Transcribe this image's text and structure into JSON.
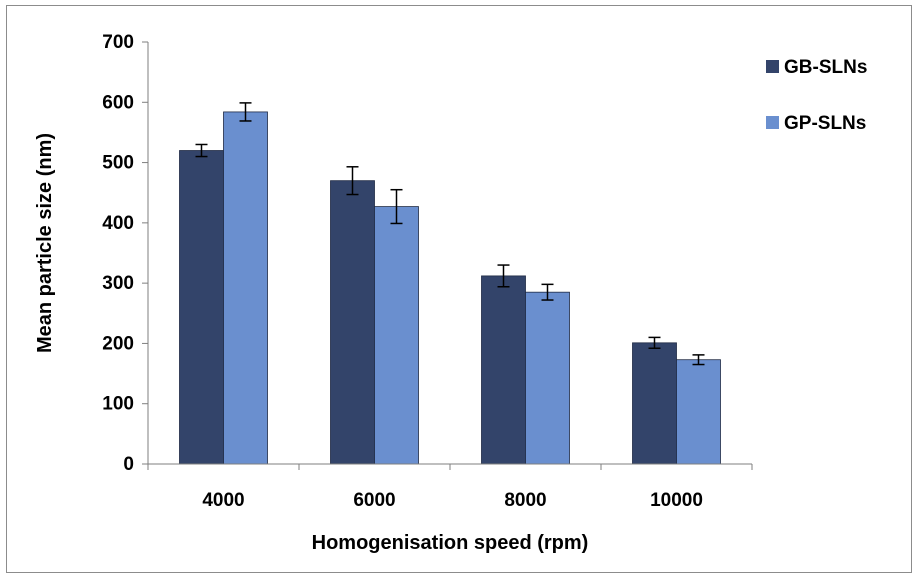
{
  "chart_data": {
    "type": "bar",
    "xlabel": "Homogenisation speed (rpm)",
    "ylabel": "Mean particle size (nm)",
    "categories": [
      "4000",
      "6000",
      "8000",
      "10000"
    ],
    "ylim": [
      0,
      700
    ],
    "yticks": [
      0,
      100,
      200,
      300,
      400,
      500,
      600,
      700
    ],
    "grid": false,
    "legend_position": "top-right",
    "series": [
      {
        "name": "GB-SLNs",
        "color": "#33446a",
        "values": [
          520,
          470,
          312,
          201
        ],
        "errors": [
          10,
          23,
          18,
          9
        ]
      },
      {
        "name": "GP-SLNs",
        "color": "#6a8fcf",
        "values": [
          584,
          427,
          285,
          173
        ],
        "errors": [
          15,
          28,
          13,
          8
        ]
      }
    ]
  }
}
